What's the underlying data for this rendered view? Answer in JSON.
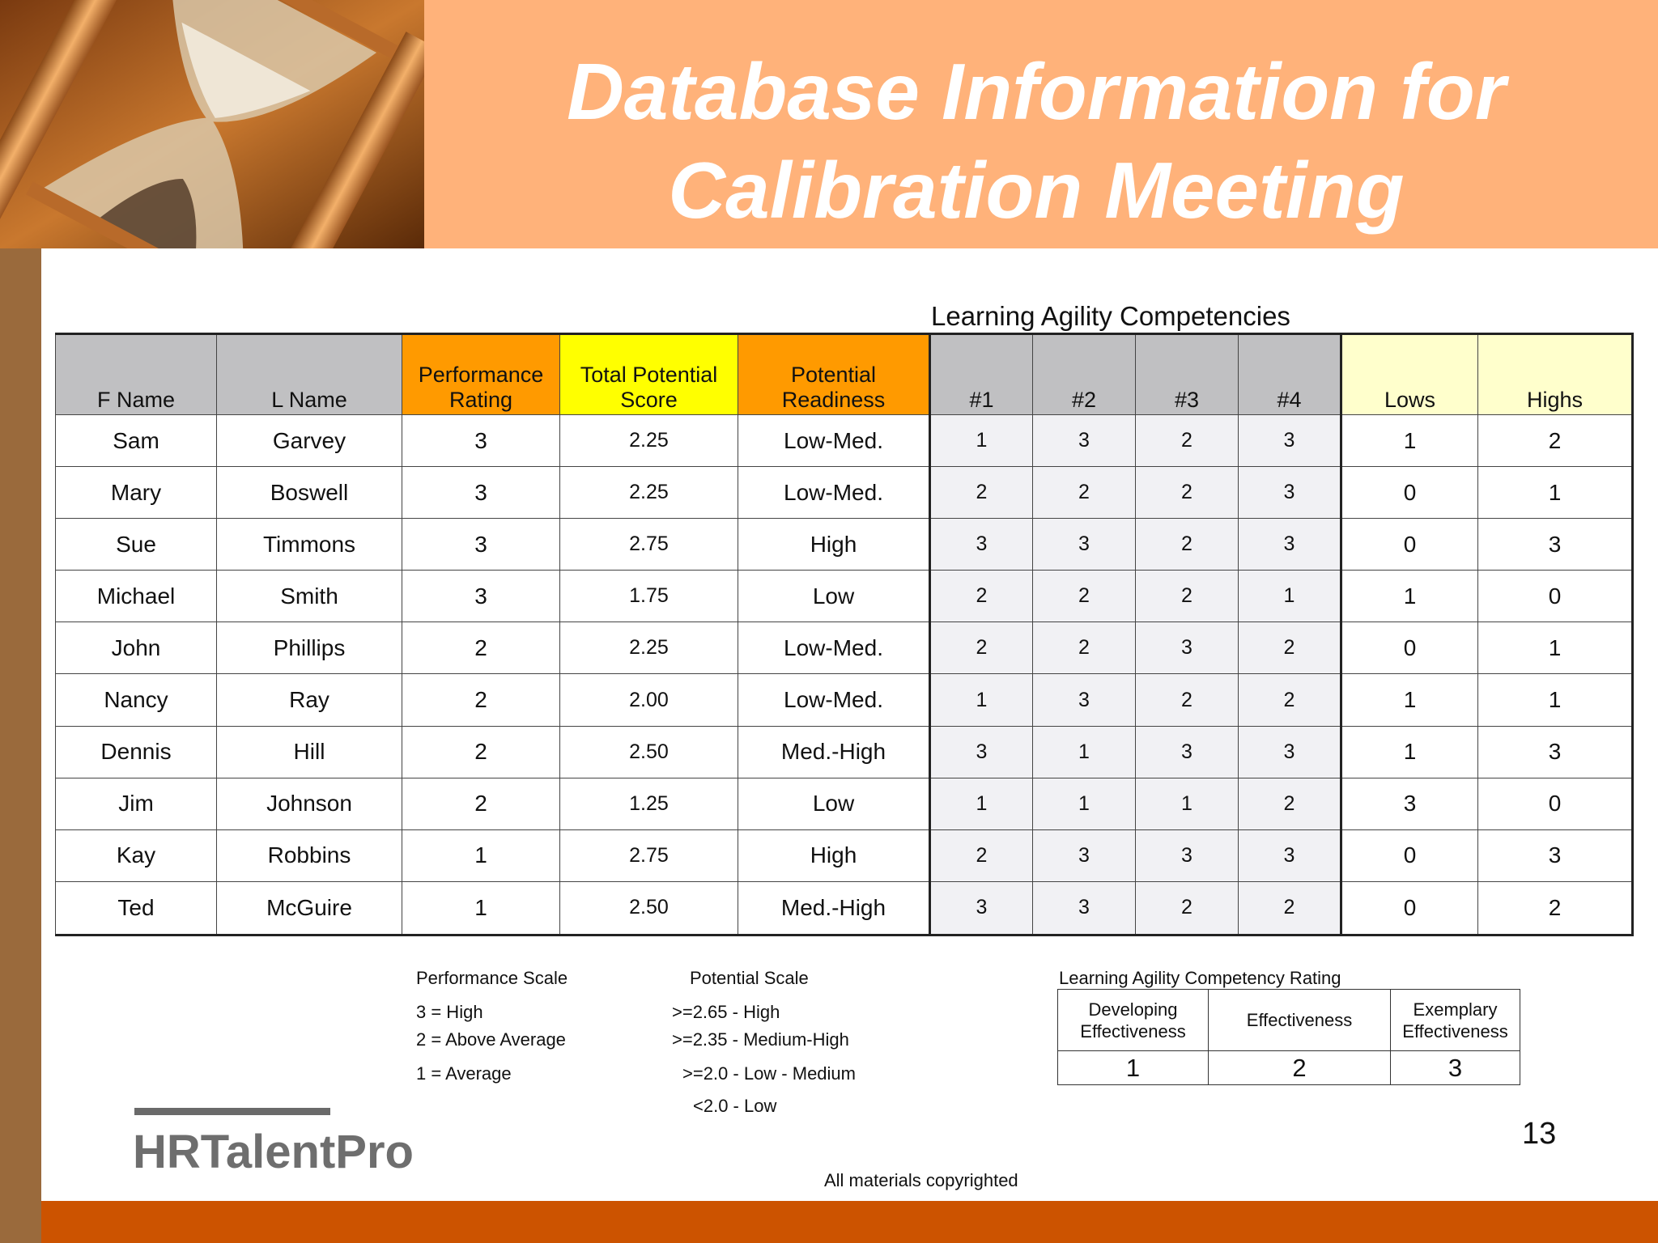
{
  "title": {
    "line1": "Database Information for",
    "line2": "Calibration Meeting"
  },
  "section_label": "Learning Agility Competencies",
  "table": {
    "headers": {
      "fname": "F Name",
      "lname": "L Name",
      "performance_l1": "Performance",
      "performance_l2": "Rating",
      "potential_l1": "Total Potential",
      "potential_l2": "Score",
      "readiness": "Potential Readiness",
      "c1": "#1",
      "c2": "#2",
      "c3": "#3",
      "c4": "#4",
      "lows": "Lows",
      "highs": "Highs"
    },
    "rows": [
      {
        "fname": "Sam",
        "lname": "Garvey",
        "perf": "3",
        "score": "2.25",
        "readiness": "Low-Med.",
        "c1": "1",
        "c2": "3",
        "c3": "2",
        "c4": "3",
        "lows": "1",
        "highs": "2"
      },
      {
        "fname": "Mary",
        "lname": "Boswell",
        "perf": "3",
        "score": "2.25",
        "readiness": "Low-Med.",
        "c1": "2",
        "c2": "2",
        "c3": "2",
        "c4": "3",
        "lows": "0",
        "highs": "1"
      },
      {
        "fname": "Sue",
        "lname": "Timmons",
        "perf": "3",
        "score": "2.75",
        "readiness": "High",
        "c1": "3",
        "c2": "3",
        "c3": "2",
        "c4": "3",
        "lows": "0",
        "highs": "3"
      },
      {
        "fname": "Michael",
        "lname": "Smith",
        "perf": "3",
        "score": "1.75",
        "readiness": "Low",
        "c1": "2",
        "c2": "2",
        "c3": "2",
        "c4": "1",
        "lows": "1",
        "highs": "0"
      },
      {
        "fname": "John",
        "lname": "Phillips",
        "perf": "2",
        "score": "2.25",
        "readiness": "Low-Med.",
        "c1": "2",
        "c2": "2",
        "c3": "3",
        "c4": "2",
        "lows": "0",
        "highs": "1"
      },
      {
        "fname": "Nancy",
        "lname": "Ray",
        "perf": "2",
        "score": "2.00",
        "readiness": "Low-Med.",
        "c1": "1",
        "c2": "3",
        "c3": "2",
        "c4": "2",
        "lows": "1",
        "highs": "1"
      },
      {
        "fname": "Dennis",
        "lname": "Hill",
        "perf": "2",
        "score": "2.50",
        "readiness": "Med.-High",
        "c1": "3",
        "c2": "1",
        "c3": "3",
        "c4": "3",
        "lows": "1",
        "highs": "3"
      },
      {
        "fname": "Jim",
        "lname": "Johnson",
        "perf": "2",
        "score": "1.25",
        "readiness": "Low",
        "c1": "1",
        "c2": "1",
        "c3": "1",
        "c4": "2",
        "lows": "3",
        "highs": "0"
      },
      {
        "fname": "Kay",
        "lname": "Robbins",
        "perf": "1",
        "score": "2.75",
        "readiness": "High",
        "c1": "2",
        "c2": "3",
        "c3": "3",
        "c4": "3",
        "lows": "0",
        "highs": "3"
      },
      {
        "fname": "Ted",
        "lname": "McGuire",
        "perf": "1",
        "score": "2.50",
        "readiness": "Med.-High",
        "c1": "3",
        "c2": "3",
        "c3": "2",
        "c4": "2",
        "lows": "0",
        "highs": "2"
      }
    ]
  },
  "performance_scale": {
    "title": "Performance Scale",
    "items": [
      "3 = High",
      "2 = Above Average",
      "1 = Average"
    ]
  },
  "potential_scale": {
    "title": "Potential Scale",
    "items": [
      ">=2.65 - High",
      ">=2.35 - Medium-High",
      ">=2.0 - Low - Medium",
      "<2.0 - Low"
    ]
  },
  "lac_rating": {
    "title": "Learning Agility Competency Rating",
    "headers": [
      {
        "l1": "Developing",
        "l2": "Effectiveness"
      },
      {
        "l1": "Effectiveness",
        "l2": ""
      },
      {
        "l1": "Exemplary",
        "l2": "Effectiveness"
      }
    ],
    "values": [
      "1",
      "2",
      "3"
    ]
  },
  "logo_text": "HRTalentPro",
  "page_number": "13",
  "copyright": "All materials copyrighted"
}
